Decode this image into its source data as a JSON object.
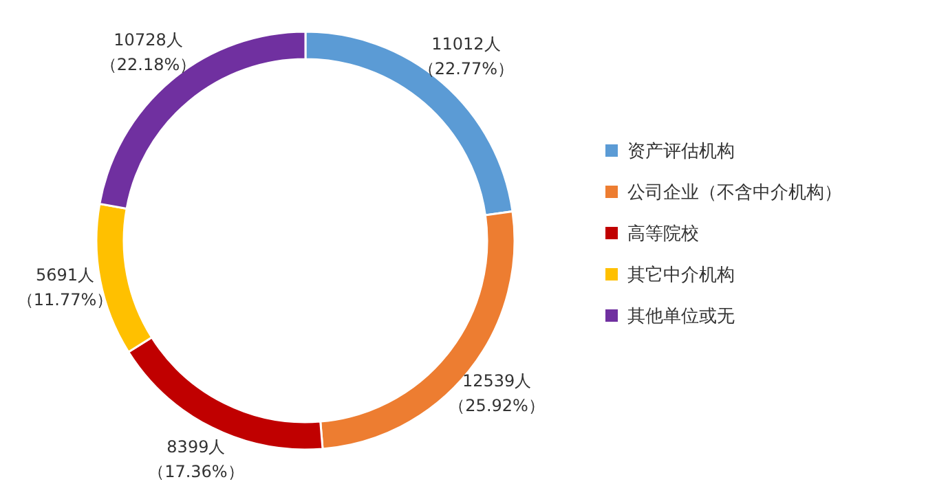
{
  "chart_data": {
    "type": "donut",
    "categories": [
      "资产评估机构",
      "公司企业（不含中介机构）",
      "高等院校",
      "其它中介机构",
      "其他单位或无"
    ],
    "values": [
      11012,
      12539,
      8399,
      5691,
      10728
    ],
    "colors": [
      "#5b9bd5",
      "#ed7d31",
      "#c00000",
      "#ffc000",
      "#7030a0"
    ],
    "value_labels": [
      "11012人（22.77%）",
      "12539人（25.92%）",
      "8399人（17.36%）",
      "5691人（11.77%）",
      "10728人（22.18%）"
    ],
    "legend": "right"
  }
}
